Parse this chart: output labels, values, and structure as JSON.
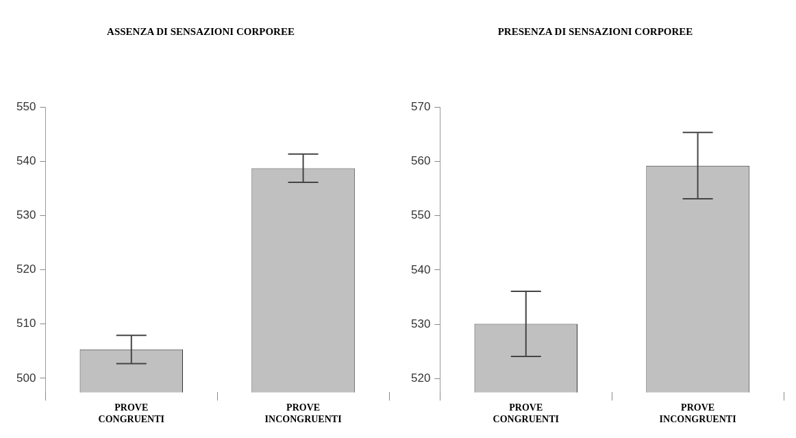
{
  "chart_data": [
    {
      "type": "bar",
      "title": "ASSENZA DI SENSAZIONI CORPOREE",
      "categories": [
        "PROVE CONGRUENTI",
        "PROVE INCONGRUENTI"
      ],
      "values": [
        505.3,
        538.7
      ],
      "errors": [
        2.6,
        2.6
      ],
      "color": "#c0c0c0",
      "ylim": [
        497.4,
        550
      ],
      "yticks": [
        500,
        510,
        520,
        530,
        540,
        550
      ]
    },
    {
      "type": "bar",
      "title": "PRESENZA DI SENSAZIONI CORPOREE",
      "categories": [
        "PROVE CONGRUENTI",
        "PROVE INCONGRUENTI"
      ],
      "values": [
        530.1,
        559.2
      ],
      "errors": [
        6,
        6.1
      ],
      "color": "#c0c0c0",
      "ylim": [
        517.5,
        570
      ],
      "yticks": [
        520,
        530,
        540,
        550,
        560,
        570
      ]
    }
  ]
}
